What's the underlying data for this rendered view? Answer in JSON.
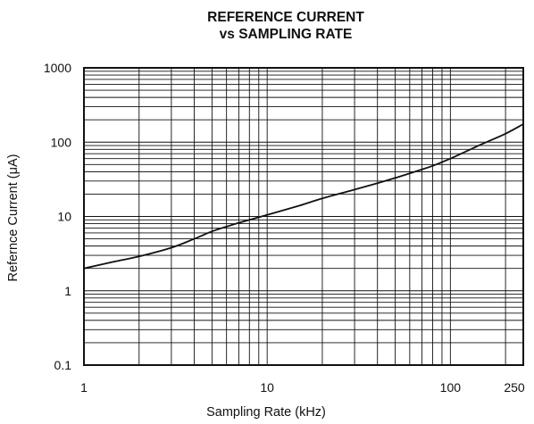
{
  "chart_data": {
    "type": "line",
    "title": "REFERENCE CURRENT",
    "subtitle": "vs SAMPLING RATE",
    "xlabel": "Sampling Rate (kHz)",
    "ylabel": "Refernce Current (μA)",
    "x_scale": "log",
    "y_scale": "log",
    "xlim": [
      1,
      250
    ],
    "ylim": [
      0.1,
      1000
    ],
    "x_ticks": [
      {
        "value": 1,
        "label": "1"
      },
      {
        "value": 10,
        "label": "10"
      },
      {
        "value": 100,
        "label": "100"
      },
      {
        "value": 250,
        "label": "250"
      }
    ],
    "y_ticks": [
      {
        "value": 0.1,
        "label": "0.1"
      },
      {
        "value": 1,
        "label": "1"
      },
      {
        "value": 10,
        "label": "10"
      },
      {
        "value": 100,
        "label": "100"
      },
      {
        "value": 1000,
        "label": "1000"
      }
    ],
    "grid": true,
    "series": [
      {
        "color": "#111111",
        "x": [
          1,
          1.5,
          2,
          3,
          4,
          5,
          6,
          7,
          8,
          10,
          15,
          20,
          30,
          40,
          50,
          60,
          70,
          80,
          100,
          150,
          200,
          250
        ],
        "y": [
          2.0,
          2.5,
          2.9,
          3.8,
          5.0,
          6.3,
          7.3,
          8.2,
          9.0,
          10.5,
          14.0,
          17.5,
          23.0,
          28.0,
          33.0,
          38.0,
          43.0,
          48.0,
          60.0,
          95.0,
          130.0,
          175.0
        ]
      }
    ]
  }
}
